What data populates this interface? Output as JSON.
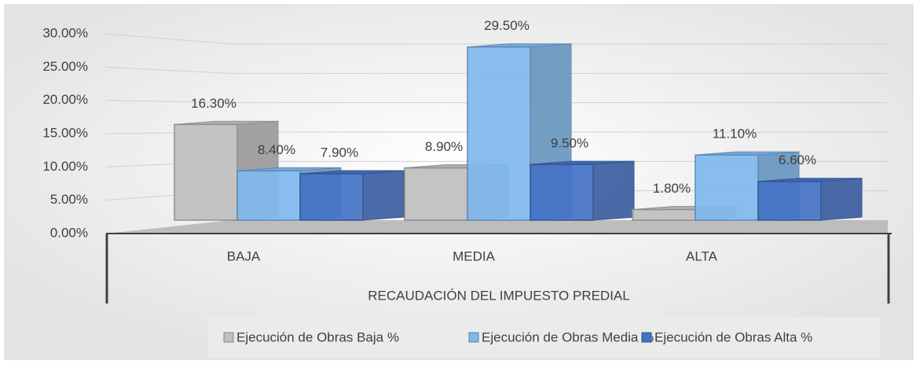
{
  "chart_data": {
    "type": "bar3d",
    "x_label": "RECAUDACIÓN DEL IMPUESTO PREDIAL",
    "categories": [
      "BAJA",
      "MEDIA",
      "ALTA"
    ],
    "series": [
      {
        "name": "Ejecución de Obras Baja %",
        "color": "#bfbfbf",
        "values": [
          16.3,
          8.9,
          1.8
        ],
        "value_labels": [
          "16.30%",
          "8.90%",
          "1.80%"
        ]
      },
      {
        "name": "Ejecución de Obras Media %",
        "color": "#7fb8ee",
        "values": [
          8.4,
          29.5,
          11.1
        ],
        "value_labels": [
          "8.40%",
          "29.50%",
          "11.10%"
        ]
      },
      {
        "name": "Ejecución de Obras Alta %",
        "color": "#4472c4",
        "values": [
          7.9,
          9.5,
          6.6
        ],
        "value_labels": [
          "7.90%",
          "9.50%",
          "6.60%"
        ]
      }
    ],
    "ylim": [
      0,
      30
    ],
    "yticks": [
      {
        "value": 0,
        "label": "0.00%"
      },
      {
        "value": 5,
        "label": "5.00%"
      },
      {
        "value": 10,
        "label": "10.00%"
      },
      {
        "value": 15,
        "label": "15.00%"
      },
      {
        "value": 20,
        "label": "20.00%"
      },
      {
        "value": 25,
        "label": "25.00%"
      },
      {
        "value": 30,
        "label": "30.00%"
      }
    ],
    "grid": true,
    "legend": "bottom"
  }
}
